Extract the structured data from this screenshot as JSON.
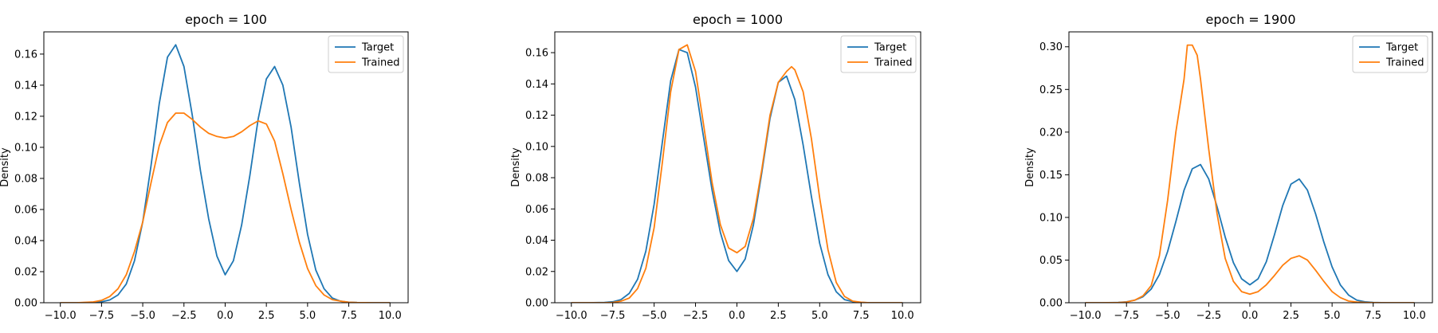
{
  "colors": {
    "target": "#1f77b4",
    "trained": "#ff7f0e",
    "axes": "#000000",
    "background": "#ffffff"
  },
  "chart_data": [
    {
      "type": "line",
      "title": "epoch = 100",
      "xlabel": "",
      "ylabel": "Density",
      "xlim": [
        -11,
        11.1
      ],
      "ylim": [
        0,
        0.1743
      ],
      "xticks": [
        "−10.0",
        "−7.5",
        "−5.0",
        "−2.5",
        "0.0",
        "2.5",
        "5.0",
        "7.5",
        "10.0"
      ],
      "xtick_values": [
        -10,
        -7.5,
        -5,
        -2.5,
        0,
        2.5,
        5,
        7.5,
        10
      ],
      "yticks": [
        "0.00",
        "0.02",
        "0.04",
        "0.06",
        "0.08",
        "0.10",
        "0.12",
        "0.14",
        "0.16"
      ],
      "ytick_values": [
        0,
        0.02,
        0.04,
        0.06,
        0.08,
        0.1,
        0.12,
        0.14,
        0.16
      ],
      "legend": {
        "position": "top-right",
        "entries": [
          "Target",
          "Trained"
        ]
      },
      "series": [
        {
          "name": "Target",
          "x": [
            -10,
            -9,
            -8,
            -7.5,
            -7,
            -6.5,
            -6,
            -5.5,
            -5,
            -4.5,
            -4,
            -3.5,
            -3,
            -2.5,
            -2,
            -1.5,
            -1,
            -0.5,
            0,
            0.5,
            1,
            1.5,
            2,
            2.5,
            3,
            3.5,
            4,
            4.5,
            5,
            5.5,
            6,
            6.5,
            7,
            7.5,
            8,
            9,
            10
          ],
          "y": [
            0.0,
            0.0,
            0.0002,
            0.0006,
            0.0018,
            0.005,
            0.012,
            0.027,
            0.052,
            0.088,
            0.128,
            0.158,
            0.166,
            0.152,
            0.121,
            0.085,
            0.054,
            0.03,
            0.018,
            0.027,
            0.05,
            0.082,
            0.118,
            0.144,
            0.152,
            0.14,
            0.113,
            0.077,
            0.044,
            0.021,
            0.009,
            0.003,
            0.001,
            0.0003,
            0.0001,
            0.0,
            0.0
          ]
        },
        {
          "name": "Trained",
          "x": [
            -10,
            -9,
            -8,
            -7.5,
            -7,
            -6.5,
            -6,
            -5.5,
            -5,
            -4.5,
            -4,
            -3.5,
            -3,
            -2.5,
            -2,
            -1.5,
            -1,
            -0.5,
            0,
            0.5,
            1,
            1.5,
            2,
            2.5,
            3,
            3.5,
            4,
            4.5,
            5,
            5.5,
            6,
            6.5,
            7,
            7.5,
            8,
            9,
            10
          ],
          "y": [
            0.0,
            0.0,
            0.0005,
            0.0015,
            0.004,
            0.009,
            0.018,
            0.033,
            0.052,
            0.077,
            0.101,
            0.116,
            0.122,
            0.122,
            0.118,
            0.113,
            0.109,
            0.107,
            0.106,
            0.107,
            0.11,
            0.114,
            0.117,
            0.115,
            0.104,
            0.083,
            0.06,
            0.039,
            0.022,
            0.011,
            0.005,
            0.002,
            0.001,
            0.0003,
            0.0001,
            0.0,
            0.0
          ]
        }
      ]
    },
    {
      "type": "line",
      "title": "epoch = 1000",
      "xlabel": "",
      "ylabel": "Density",
      "xlim": [
        -11,
        11.1
      ],
      "ylim": [
        0,
        0.1733
      ],
      "xticks": [
        "−10.0",
        "−7.5",
        "−5.0",
        "−2.5",
        "0.0",
        "2.5",
        "5.0",
        "7.5",
        "10.0"
      ],
      "xtick_values": [
        -10,
        -7.5,
        -5,
        -2.5,
        0,
        2.5,
        5,
        7.5,
        10
      ],
      "yticks": [
        "0.00",
        "0.02",
        "0.04",
        "0.06",
        "0.08",
        "0.10",
        "0.12",
        "0.14",
        "0.16"
      ],
      "ytick_values": [
        0,
        0.02,
        0.04,
        0.06,
        0.08,
        0.1,
        0.12,
        0.14,
        0.16
      ],
      "legend": {
        "position": "top-right",
        "entries": [
          "Target",
          "Trained"
        ]
      },
      "series": [
        {
          "name": "Target",
          "x": [
            -10,
            -9,
            -8,
            -7.5,
            -7,
            -6.5,
            -6,
            -5.5,
            -5,
            -4.5,
            -4,
            -3.5,
            -3,
            -2.5,
            -2,
            -1.5,
            -1,
            -0.5,
            0,
            0.5,
            1,
            1.5,
            2,
            2.5,
            3,
            3.5,
            4,
            4.5,
            5,
            5.5,
            6,
            6.5,
            7,
            7.5,
            8,
            9,
            10
          ],
          "y": [
            0.0,
            0.0,
            0.0002,
            0.0006,
            0.002,
            0.006,
            0.015,
            0.033,
            0.063,
            0.103,
            0.142,
            0.162,
            0.16,
            0.138,
            0.105,
            0.072,
            0.045,
            0.027,
            0.02,
            0.028,
            0.05,
            0.083,
            0.118,
            0.141,
            0.145,
            0.13,
            0.101,
            0.068,
            0.038,
            0.018,
            0.007,
            0.002,
            0.0007,
            0.0002,
            0.0,
            0.0,
            0.0
          ]
        },
        {
          "name": "Trained",
          "x": [
            -10,
            -9,
            -8,
            -7.5,
            -7,
            -6.5,
            -6,
            -5.5,
            -5,
            -4.5,
            -4,
            -3.5,
            -3,
            -2.5,
            -2,
            -1.5,
            -1,
            -0.5,
            0,
            0.5,
            1,
            1.5,
            2,
            2.5,
            3,
            3.3,
            3.5,
            4,
            4.5,
            5,
            5.5,
            6,
            6.5,
            7,
            7.5,
            8,
            9,
            10
          ],
          "y": [
            0.0,
            0.0,
            0.0,
            0.0002,
            0.001,
            0.003,
            0.009,
            0.022,
            0.048,
            0.09,
            0.135,
            0.162,
            0.165,
            0.148,
            0.113,
            0.077,
            0.05,
            0.035,
            0.032,
            0.036,
            0.054,
            0.085,
            0.12,
            0.141,
            0.148,
            0.151,
            0.149,
            0.135,
            0.105,
            0.067,
            0.034,
            0.013,
            0.004,
            0.001,
            0.0003,
            0.0,
            0.0,
            0.0
          ]
        }
      ]
    },
    {
      "type": "line",
      "title": "epoch = 1900",
      "xlabel": "",
      "ylabel": "Density",
      "xlim": [
        -11,
        11.1
      ],
      "ylim": [
        0,
        0.3175
      ],
      "xticks": [
        "−10.0",
        "−7.5",
        "−5.0",
        "−2.5",
        "0.0",
        "2.5",
        "5.0",
        "7.5",
        "10.0"
      ],
      "xtick_values": [
        -10,
        -7.5,
        -5,
        -2.5,
        0,
        2.5,
        5,
        7.5,
        10
      ],
      "yticks": [
        "0.00",
        "0.05",
        "0.10",
        "0.15",
        "0.20",
        "0.25",
        "0.30"
      ],
      "ytick_values": [
        0,
        0.05,
        0.1,
        0.15,
        0.2,
        0.25,
        0.3
      ],
      "legend": {
        "position": "top-right",
        "entries": [
          "Target",
          "Trained"
        ]
      },
      "series": [
        {
          "name": "Target",
          "x": [
            -10,
            -9,
            -8,
            -7.5,
            -7,
            -6.5,
            -6,
            -5.5,
            -5,
            -4.5,
            -4,
            -3.5,
            -3,
            -2.5,
            -2,
            -1.5,
            -1,
            -0.5,
            0,
            0.5,
            1,
            1.5,
            2,
            2.5,
            3,
            3.5,
            4,
            4.5,
            5,
            5.5,
            6,
            6.5,
            7,
            7.5,
            8,
            9,
            10
          ],
          "y": [
            0.0,
            0.0,
            0.0003,
            0.001,
            0.003,
            0.007,
            0.016,
            0.033,
            0.06,
            0.095,
            0.132,
            0.157,
            0.162,
            0.145,
            0.113,
            0.077,
            0.047,
            0.028,
            0.021,
            0.028,
            0.048,
            0.08,
            0.114,
            0.139,
            0.145,
            0.132,
            0.104,
            0.071,
            0.042,
            0.021,
            0.009,
            0.003,
            0.001,
            0.0003,
            0.0001,
            0.0,
            0.0
          ]
        },
        {
          "name": "Trained",
          "x": [
            -10,
            -9,
            -8,
            -7.5,
            -7,
            -6.5,
            -6,
            -5.5,
            -5,
            -4.5,
            -4,
            -3.8,
            -3.5,
            -3.2,
            -3,
            -2.5,
            -2,
            -1.5,
            -1,
            -0.5,
            0,
            0.5,
            1,
            1.5,
            2,
            2.5,
            3,
            3.5,
            4,
            4.5,
            5,
            5.5,
            6,
            6.5,
            7,
            7.5,
            8,
            9,
            10
          ],
          "y": [
            0.0,
            0.0,
            0.0002,
            0.0008,
            0.003,
            0.008,
            0.02,
            0.055,
            0.12,
            0.2,
            0.262,
            0.302,
            0.302,
            0.29,
            0.262,
            0.18,
            0.105,
            0.052,
            0.025,
            0.013,
            0.01,
            0.013,
            0.021,
            0.032,
            0.044,
            0.052,
            0.055,
            0.05,
            0.038,
            0.025,
            0.013,
            0.006,
            0.002,
            0.0008,
            0.0003,
            0.0001,
            0.0,
            0.0,
            0.0
          ]
        }
      ]
    }
  ]
}
